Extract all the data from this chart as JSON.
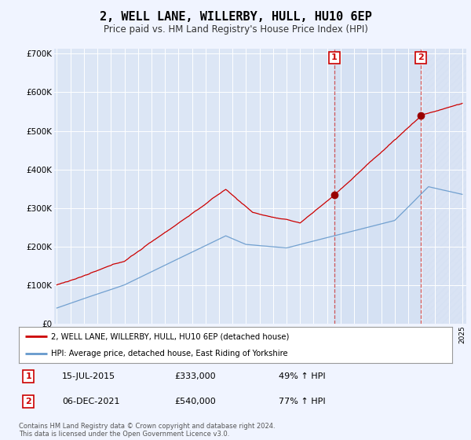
{
  "title": "2, WELL LANE, WILLERBY, HULL, HU10 6EP",
  "subtitle": "Price paid vs. HM Land Registry's House Price Index (HPI)",
  "title_fontsize": 11,
  "subtitle_fontsize": 8.5,
  "bg_color": "#f0f4ff",
  "plot_bg_color": "#dce6f5",
  "grid_color": "#ffffff",
  "line1_color": "#cc0000",
  "line2_color": "#6699cc",
  "sale1_year": 2015.542,
  "sale1_price": 333000,
  "sale2_year": 2021.923,
  "sale2_price": 540000,
  "legend_line1": "2, WELL LANE, WILLERBY, HULL, HU10 6EP (detached house)",
  "legend_line2": "HPI: Average price, detached house, East Riding of Yorkshire",
  "annotation1_date": "15-JUL-2015",
  "annotation1_price": "£333,000",
  "annotation1_hpi": "49% ↑ HPI",
  "annotation2_date": "06-DEC-2021",
  "annotation2_price": "£540,000",
  "annotation2_hpi": "77% ↑ HPI",
  "footer": "Contains HM Land Registry data © Crown copyright and database right 2024.\nThis data is licensed under the Open Government Licence v3.0.",
  "ytick_vals": [
    0,
    100000,
    200000,
    300000,
    400000,
    500000,
    600000,
    700000
  ],
  "ytick_labels": [
    "£0",
    "£100K",
    "£200K",
    "£300K",
    "£400K",
    "£500K",
    "£600K",
    "£700K"
  ],
  "xmin": 1995,
  "xmax": 2025,
  "ymin": 0,
  "ymax": 700000
}
